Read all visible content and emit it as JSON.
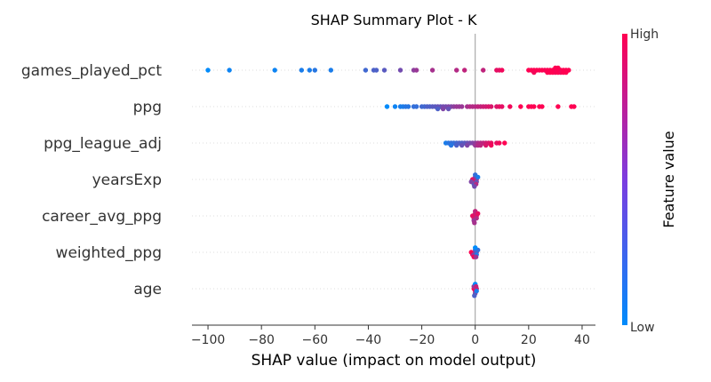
{
  "chart_data": {
    "type": "scatter",
    "title": "SHAP Summary Plot - K",
    "xlabel": "SHAP value (impact on model output)",
    "xlim": [
      -106,
      45
    ],
    "xticks": [
      -100,
      -80,
      -60,
      -40,
      -20,
      0,
      20,
      40
    ],
    "grid": false,
    "colorbar": {
      "label": "Feature value",
      "high_label": "High",
      "low_label": "Low",
      "low_color": "#008bfb",
      "high_color": "#ff0052"
    },
    "features": [
      {
        "name": "games_played_pct",
        "points": [
          {
            "x": -100,
            "v": 0.0
          },
          {
            "x": -92,
            "v": 0.05
          },
          {
            "x": -75,
            "v": 0.05
          },
          {
            "x": -65,
            "v": 0.1
          },
          {
            "x": -62,
            "v": 0.1
          },
          {
            "x": -60,
            "v": 0.15
          },
          {
            "x": -54,
            "v": 0.1
          },
          {
            "x": -41,
            "v": 0.25
          },
          {
            "x": -38,
            "v": 0.3
          },
          {
            "x": -37,
            "v": 0.3
          },
          {
            "x": -34,
            "v": 0.35
          },
          {
            "x": -28,
            "v": 0.45
          },
          {
            "x": -23,
            "v": 0.55
          },
          {
            "x": -22,
            "v": 0.6
          },
          {
            "x": -16,
            "v": 0.65
          },
          {
            "x": -7,
            "v": 0.7
          },
          {
            "x": -4,
            "v": 0.75
          },
          {
            "x": 3,
            "v": 0.75
          },
          {
            "x": 8,
            "v": 0.9
          },
          {
            "x": 9,
            "v": 0.9
          },
          {
            "x": 10,
            "v": 0.95
          },
          {
            "x": 20,
            "v": 1.0
          },
          {
            "x": 21,
            "v": 1.0
          },
          {
            "x": 22,
            "v": 1.0
          },
          {
            "x": 22,
            "v": 0.95
          },
          {
            "x": 24,
            "v": 1.0
          },
          {
            "x": 26,
            "v": 0.95
          },
          {
            "x": 27,
            "v": 1.0
          },
          {
            "x": 28,
            "v": 1.0
          },
          {
            "x": 29,
            "v": 1.0
          },
          {
            "x": 30,
            "v": 1.0
          },
          {
            "x": 30,
            "v": 0.95
          },
          {
            "x": 31,
            "v": 1.0
          },
          {
            "x": 31,
            "v": 1.0
          },
          {
            "x": 32,
            "v": 1.0
          },
          {
            "x": 32,
            "v": 0.95
          },
          {
            "x": 33,
            "v": 1.0
          },
          {
            "x": 34,
            "v": 1.0
          },
          {
            "x": 35,
            "v": 1.0
          },
          {
            "x": 29,
            "v": 1.0
          },
          {
            "x": 30,
            "v": 1.0
          },
          {
            "x": 31,
            "v": 1.0
          },
          {
            "x": 33,
            "v": 1.0
          },
          {
            "x": 28,
            "v": 1.0
          },
          {
            "x": 27,
            "v": 1.0
          },
          {
            "x": 34,
            "v": 1.0
          },
          {
            "x": 23,
            "v": 1.0
          },
          {
            "x": 25,
            "v": 1.0
          }
        ]
      },
      {
        "name": "ppg",
        "points": [
          {
            "x": -33,
            "v": 0.0
          },
          {
            "x": -30,
            "v": 0.05
          },
          {
            "x": -28,
            "v": 0.1
          },
          {
            "x": -27,
            "v": 0.1
          },
          {
            "x": -26,
            "v": 0.15
          },
          {
            "x": -25,
            "v": 0.15
          },
          {
            "x": -23,
            "v": 0.2
          },
          {
            "x": -22,
            "v": 0.2
          },
          {
            "x": -20,
            "v": 0.25
          },
          {
            "x": -19,
            "v": 0.25
          },
          {
            "x": -18,
            "v": 0.3
          },
          {
            "x": -17,
            "v": 0.3
          },
          {
            "x": -16,
            "v": 0.35
          },
          {
            "x": -15,
            "v": 0.35
          },
          {
            "x": -14,
            "v": 0.4
          },
          {
            "x": -13,
            "v": 0.4
          },
          {
            "x": -12,
            "v": 0.45
          },
          {
            "x": -11,
            "v": 0.45
          },
          {
            "x": -10,
            "v": 0.5
          },
          {
            "x": -9,
            "v": 0.5
          },
          {
            "x": -8,
            "v": 0.55
          },
          {
            "x": -7,
            "v": 0.6
          },
          {
            "x": -5,
            "v": 0.6
          },
          {
            "x": -3,
            "v": 0.65
          },
          {
            "x": -1,
            "v": 0.7
          },
          {
            "x": 0,
            "v": 0.7
          },
          {
            "x": 1,
            "v": 0.75
          },
          {
            "x": 2,
            "v": 0.75
          },
          {
            "x": 3,
            "v": 0.8
          },
          {
            "x": 4,
            "v": 0.8
          },
          {
            "x": 6,
            "v": 0.85
          },
          {
            "x": 8,
            "v": 0.85
          },
          {
            "x": 9,
            "v": 0.9
          },
          {
            "x": 10,
            "v": 0.9
          },
          {
            "x": 13,
            "v": 0.95
          },
          {
            "x": 17,
            "v": 1.0
          },
          {
            "x": 20,
            "v": 1.0
          },
          {
            "x": 21,
            "v": 1.0
          },
          {
            "x": 22,
            "v": 1.0
          },
          {
            "x": 24,
            "v": 1.0
          },
          {
            "x": 25,
            "v": 1.0
          },
          {
            "x": 31,
            "v": 1.0
          },
          {
            "x": 36,
            "v": 1.0
          },
          {
            "x": 37,
            "v": 1.0
          },
          {
            "x": -14,
            "v": 0.3
          },
          {
            "x": -12,
            "v": 0.5
          },
          {
            "x": -10,
            "v": 0.4
          },
          {
            "x": -6,
            "v": 0.6
          },
          {
            "x": -2,
            "v": 0.7
          },
          {
            "x": 5,
            "v": 0.85
          }
        ]
      },
      {
        "name": "ppg_league_adj",
        "points": [
          {
            "x": -11,
            "v": 0.1
          },
          {
            "x": -10,
            "v": 0.15
          },
          {
            "x": -9,
            "v": 0.2
          },
          {
            "x": -8,
            "v": 0.2
          },
          {
            "x": -7,
            "v": 0.25
          },
          {
            "x": -6,
            "v": 0.3
          },
          {
            "x": -5,
            "v": 0.3
          },
          {
            "x": -4,
            "v": 0.35
          },
          {
            "x": -3,
            "v": 0.4
          },
          {
            "x": -2,
            "v": 0.45
          },
          {
            "x": -1,
            "v": 0.5
          },
          {
            "x": 0,
            "v": 0.55
          },
          {
            "x": 1,
            "v": 0.65
          },
          {
            "x": 2,
            "v": 0.7
          },
          {
            "x": 3,
            "v": 0.75
          },
          {
            "x": 4,
            "v": 0.8
          },
          {
            "x": 5,
            "v": 0.85
          },
          {
            "x": 6,
            "v": 0.9
          },
          {
            "x": 8,
            "v": 0.9
          },
          {
            "x": 9,
            "v": 0.95
          },
          {
            "x": 11,
            "v": 1.0
          },
          {
            "x": -7,
            "v": 0.3
          },
          {
            "x": -5,
            "v": 0.4
          },
          {
            "x": -3,
            "v": 0.5
          },
          {
            "x": 2,
            "v": 0.75
          },
          {
            "x": 4,
            "v": 0.85
          },
          {
            "x": -9,
            "v": 0.15
          },
          {
            "x": 0,
            "v": 0.6
          },
          {
            "x": 6,
            "v": 0.95
          },
          {
            "x": 1,
            "v": 0.7
          }
        ]
      },
      {
        "name": "yearsExp",
        "points": [
          {
            "x": -1,
            "v": 0.9
          },
          {
            "x": 0,
            "v": 1.0
          },
          {
            "x": 0.5,
            "v": 0.95
          },
          {
            "x": -0.5,
            "v": 0.85
          },
          {
            "x": 0,
            "v": 0.6
          },
          {
            "x": 0.5,
            "v": 0.4
          },
          {
            "x": -0.5,
            "v": 0.3
          },
          {
            "x": 0,
            "v": 0.2
          },
          {
            "x": 1,
            "v": 0.1
          },
          {
            "x": -1.5,
            "v": 0.5
          },
          {
            "x": 0.3,
            "v": 0.7
          },
          {
            "x": -0.3,
            "v": 0.45
          }
        ]
      },
      {
        "name": "career_avg_ppg",
        "points": [
          {
            "x": -1,
            "v": 0.9
          },
          {
            "x": 0,
            "v": 1.0
          },
          {
            "x": 0.5,
            "v": 0.95
          },
          {
            "x": -0.5,
            "v": 0.85
          },
          {
            "x": 0,
            "v": 0.8
          },
          {
            "x": 0.5,
            "v": 0.7
          },
          {
            "x": -0.5,
            "v": 0.6
          },
          {
            "x": 0,
            "v": 0.75
          },
          {
            "x": 1,
            "v": 0.9
          },
          {
            "x": -0.3,
            "v": 0.65
          }
        ]
      },
      {
        "name": "weighted_ppg",
        "points": [
          {
            "x": -1.5,
            "v": 1.0
          },
          {
            "x": -1,
            "v": 0.9
          },
          {
            "x": 0,
            "v": 0.85
          },
          {
            "x": 0.5,
            "v": 0.7
          },
          {
            "x": -0.5,
            "v": 0.5
          },
          {
            "x": 0,
            "v": 0.3
          },
          {
            "x": 0.5,
            "v": 0.1
          },
          {
            "x": 1,
            "v": 0.2
          },
          {
            "x": -0.5,
            "v": 0.95
          },
          {
            "x": 0.3,
            "v": 0.6
          },
          {
            "x": 0,
            "v": 0.0
          }
        ]
      },
      {
        "name": "age",
        "points": [
          {
            "x": -0.5,
            "v": 1.0
          },
          {
            "x": 0,
            "v": 0.9
          },
          {
            "x": 0.5,
            "v": 0.85
          },
          {
            "x": -0.5,
            "v": 0.6
          },
          {
            "x": 0,
            "v": 0.5
          },
          {
            "x": 0.5,
            "v": 0.1
          },
          {
            "x": 0,
            "v": 0.0
          },
          {
            "x": -0.3,
            "v": 0.3
          },
          {
            "x": 0.3,
            "v": 0.75
          }
        ]
      }
    ]
  }
}
